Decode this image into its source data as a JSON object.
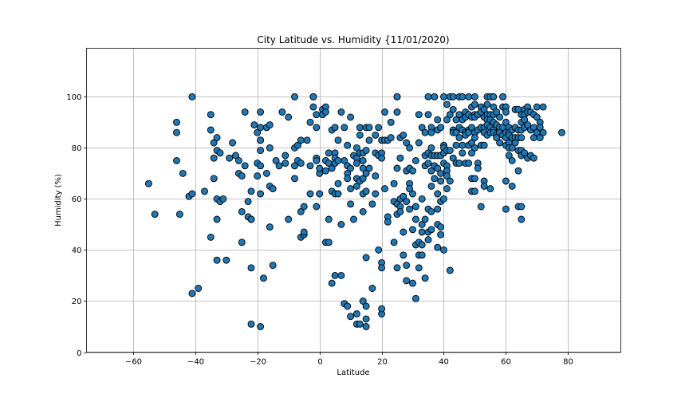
{
  "chart_data": {
    "type": "scatter",
    "title": "City Latitude vs. Humidity {11/01/2020)",
    "xlabel": "Latitude",
    "ylabel": "Humidity (%)",
    "xlim": [
      -75,
      97
    ],
    "ylim": [
      0,
      119
    ],
    "xticks": [
      -60,
      -40,
      -20,
      0,
      20,
      40,
      60,
      80
    ],
    "yticks": [
      0,
      20,
      40,
      60,
      80,
      100
    ],
    "xtick_labels": [
      "−60",
      "−40",
      "−20",
      "0",
      "20",
      "40",
      "60",
      "80"
    ],
    "ytick_labels": [
      "0",
      "20",
      "40",
      "60",
      "80",
      "100"
    ],
    "grid": true,
    "legend": null,
    "marker": {
      "color": "#1f77b4",
      "edgecolor": "#000000",
      "size": 8
    },
    "points": [
      [
        -55,
        66
      ],
      [
        -53,
        54
      ],
      [
        -46,
        86
      ],
      [
        -46,
        90
      ],
      [
        -46,
        75
      ],
      [
        -45,
        54
      ],
      [
        -44,
        70
      ],
      [
        -42,
        61
      ],
      [
        -41,
        62
      ],
      [
        -41,
        100
      ],
      [
        -41,
        23
      ],
      [
        -39,
        25
      ],
      [
        -37,
        63
      ],
      [
        -35,
        93
      ],
      [
        -35,
        87
      ],
      [
        -35,
        45
      ],
      [
        -34,
        82
      ],
      [
        -34,
        76
      ],
      [
        -34,
        68
      ],
      [
        -33,
        84
      ],
      [
        -33,
        79
      ],
      [
        -33,
        60
      ],
      [
        -33,
        52
      ],
      [
        -33,
        36
      ],
      [
        -32,
        78
      ],
      [
        -32,
        59
      ],
      [
        -31,
        60
      ],
      [
        -30,
        36
      ],
      [
        -29,
        76
      ],
      [
        -28,
        82
      ],
      [
        -27,
        77
      ],
      [
        -26,
        75
      ],
      [
        -26,
        70
      ],
      [
        -25,
        69
      ],
      [
        -25,
        55
      ],
      [
        -25,
        43
      ],
      [
        -24,
        94
      ],
      [
        -24,
        73
      ],
      [
        -23,
        59
      ],
      [
        -23,
        53
      ],
      [
        -22,
        52
      ],
      [
        -22,
        52
      ],
      [
        -22,
        63
      ],
      [
        -22,
        33
      ],
      [
        -22,
        11
      ],
      [
        -21,
        89
      ],
      [
        -20,
        86
      ],
      [
        -20,
        74
      ],
      [
        -20,
        69
      ],
      [
        -19,
        94
      ],
      [
        -19,
        88
      ],
      [
        -19,
        83
      ],
      [
        -19,
        83
      ],
      [
        -19,
        79
      ],
      [
        -19,
        73
      ],
      [
        -19,
        62
      ],
      [
        -19,
        10
      ],
      [
        -18,
        29
      ],
      [
        -17,
        88
      ],
      [
        -17,
        88
      ],
      [
        -17,
        70
      ],
      [
        -16,
        89
      ],
      [
        -16,
        80
      ],
      [
        -16,
        65
      ],
      [
        -16,
        49
      ],
      [
        -15,
        64
      ],
      [
        -15,
        34
      ],
      [
        -14,
        75
      ],
      [
        -13,
        73
      ],
      [
        -12,
        94
      ],
      [
        -11,
        77
      ],
      [
        -11,
        74
      ],
      [
        -10,
        92
      ],
      [
        -10,
        52
      ],
      [
        -8,
        100
      ],
      [
        -8,
        80
      ],
      [
        -8,
        73
      ],
      [
        -8,
        68
      ],
      [
        -7,
        81
      ],
      [
        -7,
        75
      ],
      [
        -6,
        83
      ],
      [
        -6,
        74
      ],
      [
        -6,
        55
      ],
      [
        -6,
        45
      ],
      [
        -5,
        57
      ],
      [
        -5,
        46
      ],
      [
        -5,
        47
      ],
      [
        -4,
        83
      ],
      [
        -3,
        73
      ],
      [
        -3,
        62
      ],
      [
        -3,
        90
      ],
      [
        -2,
        96
      ],
      [
        -2,
        100
      ],
      [
        -2,
        100
      ],
      [
        -1,
        93
      ],
      [
        -1,
        88
      ],
      [
        -1,
        76
      ],
      [
        -1,
        75
      ],
      [
        -1,
        57
      ],
      [
        0,
        62
      ],
      [
        0,
        70
      ],
      [
        0,
        72
      ],
      [
        1,
        95
      ],
      [
        1,
        93
      ],
      [
        2,
        96
      ],
      [
        2,
        94
      ],
      [
        2,
        71
      ],
      [
        2,
        75
      ],
      [
        2,
        43
      ],
      [
        3,
        78
      ],
      [
        3,
        74
      ],
      [
        3,
        52
      ],
      [
        3,
        43
      ],
      [
        4,
        87
      ],
      [
        4,
        72
      ],
      [
        4,
        63
      ],
      [
        4,
        27
      ],
      [
        5,
        88
      ],
      [
        5,
        78
      ],
      [
        5,
        76
      ],
      [
        5,
        74
      ],
      [
        5,
        62
      ],
      [
        5,
        30
      ],
      [
        6,
        83
      ],
      [
        6,
        66
      ],
      [
        6,
        75
      ],
      [
        6,
        62
      ],
      [
        7,
        94
      ],
      [
        7,
        50
      ],
      [
        7,
        30
      ],
      [
        8,
        88
      ],
      [
        8,
        75
      ],
      [
        8,
        19
      ],
      [
        9,
        81
      ],
      [
        9,
        73
      ],
      [
        9,
        70
      ],
      [
        9,
        68
      ],
      [
        9,
        18
      ],
      [
        10,
        92
      ],
      [
        10,
        72
      ],
      [
        10,
        64
      ],
      [
        10,
        58
      ],
      [
        10,
        14
      ],
      [
        11,
        77
      ],
      [
        11,
        52
      ],
      [
        12,
        80
      ],
      [
        12,
        76
      ],
      [
        12,
        74
      ],
      [
        12,
        68
      ],
      [
        12,
        65
      ],
      [
        12,
        15
      ],
      [
        12,
        11
      ],
      [
        13,
        88
      ],
      [
        13,
        85
      ],
      [
        13,
        78
      ],
      [
        13,
        67
      ],
      [
        13,
        11
      ],
      [
        14,
        78
      ],
      [
        14,
        75
      ],
      [
        14,
        72
      ],
      [
        14,
        68
      ],
      [
        14,
        62
      ],
      [
        14,
        55
      ],
      [
        14,
        20
      ],
      [
        15,
        88
      ],
      [
        15,
        79
      ],
      [
        15,
        70
      ],
      [
        15,
        63
      ],
      [
        15,
        37
      ],
      [
        15,
        18
      ],
      [
        15,
        13
      ],
      [
        15,
        10
      ],
      [
        16,
        88
      ],
      [
        16,
        83
      ],
      [
        16,
        72
      ],
      [
        17,
        58
      ],
      [
        17,
        25
      ],
      [
        18,
        85
      ],
      [
        18,
        69
      ],
      [
        18,
        62
      ],
      [
        18,
        78
      ],
      [
        19,
        88
      ],
      [
        19,
        77
      ],
      [
        19,
        40
      ],
      [
        20,
        83
      ],
      [
        20,
        78
      ],
      [
        20,
        76
      ],
      [
        20,
        35
      ],
      [
        20,
        33
      ],
      [
        20,
        15
      ],
      [
        20,
        17
      ],
      [
        21,
        94
      ],
      [
        21,
        83
      ],
      [
        21,
        64
      ],
      [
        22,
        83
      ],
      [
        22,
        53
      ],
      [
        22,
        51
      ],
      [
        23,
        90
      ],
      [
        23,
        84
      ],
      [
        24,
        66
      ],
      [
        24,
        59
      ],
      [
        24,
        43
      ],
      [
        25,
        100
      ],
      [
        25,
        100
      ],
      [
        25,
        94
      ],
      [
        25,
        72
      ],
      [
        25,
        58
      ],
      [
        25,
        54
      ],
      [
        25,
        33
      ],
      [
        26,
        84
      ],
      [
        26,
        76
      ],
      [
        26,
        60
      ],
      [
        26,
        57
      ],
      [
        26,
        55
      ],
      [
        27,
        85
      ],
      [
        27,
        61
      ],
      [
        27,
        47
      ],
      [
        27,
        38
      ],
      [
        28,
        82
      ],
      [
        28,
        71
      ],
      [
        28,
        59
      ],
      [
        28,
        34
      ],
      [
        28,
        28
      ],
      [
        29,
        80
      ],
      [
        29,
        72
      ],
      [
        29,
        66
      ],
      [
        29,
        64
      ],
      [
        29,
        56
      ],
      [
        30,
        71
      ],
      [
        30,
        62
      ],
      [
        30,
        48
      ],
      [
        30,
        27
      ],
      [
        31,
        75
      ],
      [
        31,
        57
      ],
      [
        31,
        52
      ],
      [
        31,
        42
      ],
      [
        31,
        21
      ],
      [
        32,
        93
      ],
      [
        32,
        82
      ],
      [
        32,
        43
      ],
      [
        32,
        38
      ],
      [
        32,
        33
      ],
      [
        33,
        88
      ],
      [
        33,
        60
      ],
      [
        33,
        50
      ],
      [
        33,
        47
      ],
      [
        33,
        42
      ],
      [
        33,
        38
      ],
      [
        34,
        86
      ],
      [
        34,
        77
      ],
      [
        34,
        73
      ],
      [
        34,
        52
      ],
      [
        34,
        29
      ],
      [
        35,
        100
      ],
      [
        35,
        93
      ],
      [
        35,
        78
      ],
      [
        35,
        74
      ],
      [
        35,
        56
      ],
      [
        35,
        47
      ],
      [
        35,
        44
      ],
      [
        36,
        88
      ],
      [
        36,
        86
      ],
      [
        36,
        80
      ],
      [
        36,
        77
      ],
      [
        36,
        71
      ],
      [
        36,
        65
      ],
      [
        36,
        48
      ],
      [
        36,
        55
      ],
      [
        37,
        100
      ],
      [
        37,
        77
      ],
      [
        37,
        73
      ],
      [
        37,
        68
      ],
      [
        38,
        91
      ],
      [
        38,
        87
      ],
      [
        38,
        77
      ],
      [
        38,
        72
      ],
      [
        38,
        62
      ],
      [
        38,
        56
      ],
      [
        38,
        50
      ],
      [
        38,
        41
      ],
      [
        39,
        88
      ],
      [
        39,
        77
      ],
      [
        39,
        70
      ],
      [
        39,
        67
      ],
      [
        39,
        59
      ],
      [
        39,
        46
      ],
      [
        39,
        49
      ],
      [
        40,
        100
      ],
      [
        40,
        81
      ],
      [
        40,
        80
      ],
      [
        40,
        78
      ],
      [
        40,
        74
      ],
      [
        40,
        60
      ],
      [
        40,
        40
      ],
      [
        41,
        97
      ],
      [
        41,
        91
      ],
      [
        41,
        79
      ],
      [
        41,
        73
      ],
      [
        41,
        71
      ],
      [
        41,
        69
      ],
      [
        41,
        64
      ],
      [
        42,
        100
      ],
      [
        42,
        93
      ],
      [
        42,
        79
      ],
      [
        42,
        67
      ],
      [
        42,
        32
      ],
      [
        43,
        100
      ],
      [
        43,
        95
      ],
      [
        43,
        87
      ],
      [
        43,
        86
      ],
      [
        43,
        76
      ],
      [
        44,
        91
      ],
      [
        44,
        86
      ],
      [
        44,
        81
      ],
      [
        44,
        74
      ],
      [
        45,
        100
      ],
      [
        45,
        93
      ],
      [
        45,
        88
      ],
      [
        45,
        84
      ],
      [
        45,
        74
      ],
      [
        46,
        100
      ],
      [
        46,
        91
      ],
      [
        46,
        87
      ],
      [
        46,
        81
      ],
      [
        46,
        78
      ],
      [
        47,
        94
      ],
      [
        47,
        92
      ],
      [
        47,
        86
      ],
      [
        47,
        85
      ],
      [
        47,
        74
      ],
      [
        48,
        100
      ],
      [
        48,
        93
      ],
      [
        48,
        87
      ],
      [
        48,
        86
      ],
      [
        48,
        81
      ],
      [
        48,
        74
      ],
      [
        49,
        96
      ],
      [
        49,
        92
      ],
      [
        49,
        88
      ],
      [
        49,
        82
      ],
      [
        49,
        78
      ],
      [
        49,
        68
      ],
      [
        49,
        63
      ],
      [
        50,
        100
      ],
      [
        50,
        97
      ],
      [
        50,
        93
      ],
      [
        50,
        92
      ],
      [
        50,
        86
      ],
      [
        50,
        84
      ],
      [
        50,
        80
      ],
      [
        50,
        68
      ],
      [
        50,
        63
      ],
      [
        51,
        93
      ],
      [
        51,
        87
      ],
      [
        51,
        74
      ],
      [
        51,
        72
      ],
      [
        52,
        96
      ],
      [
        52,
        94
      ],
      [
        52,
        88
      ],
      [
        52,
        81
      ],
      [
        52,
        57
      ],
      [
        53,
        95
      ],
      [
        53,
        92
      ],
      [
        53,
        88
      ],
      [
        53,
        86
      ],
      [
        53,
        81
      ],
      [
        53,
        67
      ],
      [
        53,
        65
      ],
      [
        54,
        100
      ],
      [
        54,
        97
      ],
      [
        54,
        93
      ],
      [
        54,
        91
      ],
      [
        54,
        89
      ],
      [
        54,
        85
      ],
      [
        55,
        100
      ],
      [
        55,
        93
      ],
      [
        55,
        91
      ],
      [
        55,
        88
      ],
      [
        55,
        86
      ],
      [
        55,
        64
      ],
      [
        56,
        100
      ],
      [
        56,
        96
      ],
      [
        56,
        93
      ],
      [
        56,
        90
      ],
      [
        56,
        87
      ],
      [
        56,
        86
      ],
      [
        57,
        94
      ],
      [
        57,
        89
      ],
      [
        57,
        85
      ],
      [
        57,
        84
      ],
      [
        58,
        92
      ],
      [
        58,
        88
      ],
      [
        58,
        86
      ],
      [
        58,
        82
      ],
      [
        59,
        100
      ],
      [
        59,
        96
      ],
      [
        59,
        88
      ],
      [
        59,
        85
      ],
      [
        60,
        96
      ],
      [
        60,
        94
      ],
      [
        60,
        90
      ],
      [
        60,
        86
      ],
      [
        60,
        84
      ],
      [
        60,
        81
      ],
      [
        60,
        67
      ],
      [
        60,
        56
      ],
      [
        61,
        88
      ],
      [
        61,
        86
      ],
      [
        61,
        85
      ],
      [
        61,
        82
      ],
      [
        61,
        80
      ],
      [
        61,
        77
      ],
      [
        62,
        87
      ],
      [
        62,
        84
      ],
      [
        62,
        80
      ],
      [
        62,
        75
      ],
      [
        62,
        65
      ],
      [
        63,
        95
      ],
      [
        63,
        88
      ],
      [
        63,
        84
      ],
      [
        63,
        82
      ],
      [
        64,
        95
      ],
      [
        64,
        87
      ],
      [
        64,
        84
      ],
      [
        64,
        79
      ],
      [
        64,
        71
      ],
      [
        64,
        57
      ],
      [
        65,
        93
      ],
      [
        65,
        90
      ],
      [
        65,
        87
      ],
      [
        65,
        84
      ],
      [
        65,
        79
      ],
      [
        65,
        77
      ],
      [
        65,
        57
      ],
      [
        65,
        52
      ],
      [
        66,
        95
      ],
      [
        66,
        93
      ],
      [
        66,
        91
      ],
      [
        66,
        88
      ],
      [
        66,
        78
      ],
      [
        67,
        96
      ],
      [
        67,
        94
      ],
      [
        67,
        89
      ],
      [
        67,
        76
      ],
      [
        68,
        94
      ],
      [
        68,
        87
      ],
      [
        68,
        77
      ],
      [
        69,
        93
      ],
      [
        69,
        88
      ],
      [
        69,
        84
      ],
      [
        69,
        76
      ],
      [
        70,
        96
      ],
      [
        70,
        92
      ],
      [
        70,
        86
      ],
      [
        71,
        90
      ],
      [
        71,
        84
      ],
      [
        71,
        88
      ],
      [
        72,
        96
      ],
      [
        72,
        86
      ],
      [
        78,
        86
      ]
    ]
  }
}
